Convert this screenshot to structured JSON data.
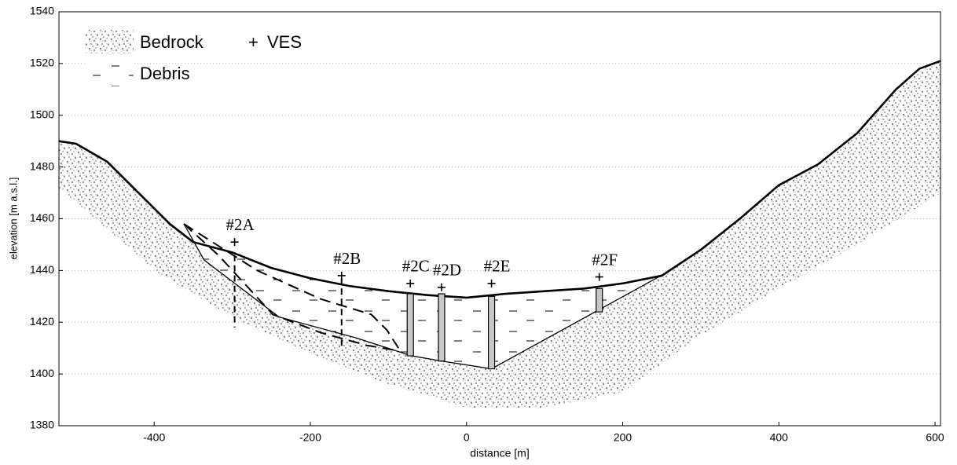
{
  "chart_data": {
    "type": "cross-section",
    "xlabel": "distance [m]",
    "ylabel": "elevation [m a.s.l.]",
    "xlim": [
      -522,
      607
    ],
    "ylim": [
      1380,
      1540
    ],
    "xticks": [
      -400,
      -200,
      0,
      200,
      400,
      600
    ],
    "yticks": [
      1380,
      1400,
      1420,
      1440,
      1460,
      1480,
      1500,
      1520,
      1540
    ],
    "grid": true,
    "legend": {
      "bedrock": "Bedrock",
      "debris": "Debris",
      "ves": "VES"
    },
    "surface": {
      "x": [
        -522,
        -500,
        -460,
        -420,
        -380,
        -350,
        -300,
        -250,
        -200,
        -150,
        -100,
        -50,
        0,
        50,
        100,
        150,
        200,
        250,
        300,
        350,
        400,
        450,
        500,
        550,
        580,
        607
      ],
      "y": [
        1490,
        1489,
        1482,
        1470,
        1458,
        1451,
        1447,
        1441,
        1437,
        1434,
        1432,
        1430.5,
        1429.5,
        1431,
        1432,
        1433,
        1435,
        1438,
        1448,
        1460,
        1473,
        1481,
        1493,
        1510,
        1518,
        1521
      ]
    },
    "bedrock_base": {
      "x": [
        -522,
        -400,
        -300,
        -200,
        -100,
        0,
        100,
        200,
        300,
        400,
        500,
        607
      ],
      "y": [
        1472,
        1440,
        1422,
        1408,
        1396,
        1387,
        1387,
        1393,
        1415,
        1433,
        1450,
        1470
      ]
    },
    "debris_base": {
      "x": [
        -362,
        -336,
        -240,
        -142,
        -70,
        -32,
        32,
        255
      ],
      "y": [
        1458,
        1444,
        1422,
        1414,
        1407,
        1405,
        1402,
        1439
      ]
    },
    "dashed_boundaries": [
      {
        "x": [
          -362,
          -268,
          -187,
          -122,
          -102,
          -85
        ],
        "y": [
          1458,
          1440,
          1429,
          1423,
          1417,
          1409
        ]
      },
      {
        "x": [
          -362,
          -318,
          -248,
          -187,
          -127,
          -87
        ],
        "y": [
          1458,
          1446,
          1423,
          1416,
          1411,
          1409
        ]
      }
    ],
    "boreholes": [
      {
        "name": "#2A",
        "x": -297,
        "top": 1446,
        "bottom": 1418,
        "ves": 1451,
        "style": "dashed"
      },
      {
        "name": "#2B",
        "x": -160,
        "top": 1437,
        "bottom": 1410,
        "ves": 1438,
        "style": "dashed"
      },
      {
        "name": "#2C",
        "x": -72,
        "top": 1431,
        "bottom": 1407,
        "ves": 1435,
        "style": "bar"
      },
      {
        "name": "#2D",
        "x": -32,
        "top": 1431,
        "bottom": 1405,
        "ves": 1433.5,
        "style": "bar"
      },
      {
        "name": "#2E",
        "x": 32,
        "top": 1430,
        "bottom": 1402,
        "ves": 1435,
        "style": "bar"
      },
      {
        "name": "#2F",
        "x": 170,
        "top": 1433,
        "bottom": 1424,
        "ves": 1437.5,
        "style": "bar"
      }
    ]
  }
}
